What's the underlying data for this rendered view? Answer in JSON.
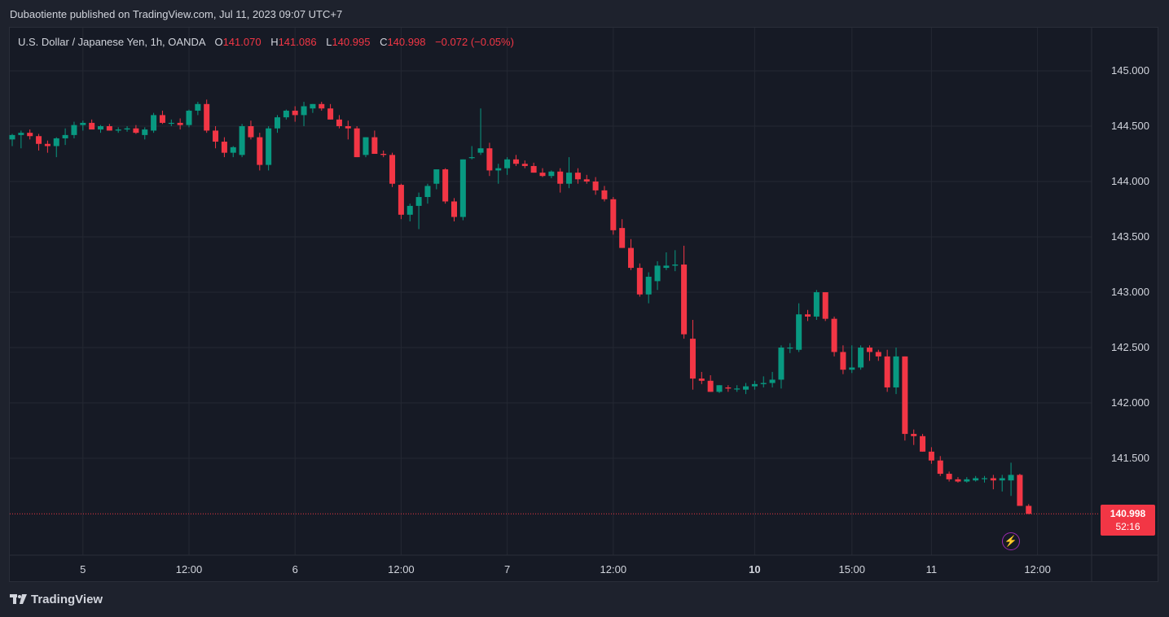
{
  "header": {
    "publish_text": "Dubaotiente published on TradingView.com, Jul 11, 2023 09:07 UTC+7"
  },
  "legend": {
    "symbol": "U.S. Dollar / Japanese Yen, 1h, OANDA",
    "o_label": "O",
    "o_value": "141.070",
    "h_label": "H",
    "h_value": "141.086",
    "l_label": "L",
    "l_value": "140.995",
    "c_label": "C",
    "c_value": "140.998",
    "change": "−0.072 (−0.05%)"
  },
  "price_tag": {
    "price": "140.998",
    "countdown": "52:16"
  },
  "footer": {
    "brand": "TradingView"
  },
  "colors": {
    "up": "#089981",
    "down": "#f23645",
    "grid": "#242833",
    "background": "#161a25",
    "text": "#d1d4dc"
  },
  "chart_data": {
    "type": "candlestick",
    "title": "U.S. Dollar / Japanese Yen, 1h, OANDA",
    "ylim": [
      140.6,
      145.4
    ],
    "y_ticks": [
      "145.000",
      "144.500",
      "144.000",
      "143.500",
      "143.000",
      "142.500",
      "142.000",
      "141.500"
    ],
    "x_tick_labels": [
      {
        "label": "5",
        "bar": 8,
        "bold": false
      },
      {
        "label": "12:00",
        "bar": 20,
        "bold": false
      },
      {
        "label": "6",
        "bar": 32,
        "bold": false
      },
      {
        "label": "12:00",
        "bar": 44,
        "bold": false
      },
      {
        "label": "7",
        "bar": 56,
        "bold": false
      },
      {
        "label": "12:00",
        "bar": 68,
        "bold": false
      },
      {
        "label": "10",
        "bar": 84,
        "bold": true
      },
      {
        "label": "15:00",
        "bar": 95,
        "bold": false
      },
      {
        "label": "11",
        "bar": 104,
        "bold": false
      },
      {
        "label": "12:00",
        "bar": 116,
        "bold": false
      }
    ],
    "last_price": 140.998,
    "candles": [
      [
        144.38,
        144.43,
        144.32,
        144.42
      ],
      [
        144.42,
        144.46,
        144.3,
        144.44
      ],
      [
        144.44,
        144.47,
        144.38,
        144.41
      ],
      [
        144.41,
        144.43,
        144.28,
        144.34
      ],
      [
        144.34,
        144.37,
        144.26,
        144.32
      ],
      [
        144.32,
        144.4,
        144.22,
        144.39
      ],
      [
        144.39,
        144.48,
        144.33,
        144.42
      ],
      [
        144.42,
        144.54,
        144.39,
        144.51
      ],
      [
        144.51,
        144.55,
        144.46,
        144.53
      ],
      [
        144.53,
        144.56,
        144.48,
        144.47
      ],
      [
        144.47,
        144.51,
        144.44,
        144.5
      ],
      [
        144.5,
        144.52,
        144.46,
        144.46
      ],
      [
        144.46,
        144.49,
        144.44,
        144.47
      ],
      [
        144.47,
        144.5,
        144.45,
        144.48
      ],
      [
        144.48,
        144.51,
        144.43,
        144.44
      ],
      [
        144.42,
        144.49,
        144.38,
        144.47
      ],
      [
        144.46,
        144.62,
        144.44,
        144.6
      ],
      [
        144.6,
        144.64,
        144.52,
        144.53
      ],
      [
        144.53,
        144.56,
        144.5,
        144.53
      ],
      [
        144.53,
        144.57,
        144.47,
        144.51
      ],
      [
        144.51,
        144.65,
        144.49,
        144.64
      ],
      [
        144.64,
        144.72,
        144.6,
        144.7
      ],
      [
        144.7,
        144.74,
        144.44,
        144.46
      ],
      [
        144.46,
        144.5,
        144.3,
        144.36
      ],
      [
        144.36,
        144.4,
        144.22,
        144.26
      ],
      [
        144.26,
        144.32,
        144.22,
        144.31
      ],
      [
        144.24,
        144.52,
        144.22,
        144.5
      ],
      [
        144.5,
        144.55,
        144.38,
        144.4
      ],
      [
        144.4,
        144.44,
        144.1,
        144.15
      ],
      [
        144.15,
        144.5,
        144.1,
        144.48
      ],
      [
        144.48,
        144.6,
        144.44,
        144.58
      ],
      [
        144.58,
        144.65,
        144.56,
        144.64
      ],
      [
        144.64,
        144.68,
        144.54,
        144.6
      ],
      [
        144.6,
        144.72,
        144.5,
        144.68
      ],
      [
        144.66,
        144.7,
        144.62,
        144.7
      ],
      [
        144.7,
        144.72,
        144.64,
        144.66
      ],
      [
        144.66,
        144.7,
        144.56,
        144.56
      ],
      [
        144.56,
        144.6,
        144.48,
        144.5
      ],
      [
        144.5,
        144.55,
        144.38,
        144.48
      ],
      [
        144.48,
        144.5,
        144.22,
        144.22
      ],
      [
        144.24,
        144.4,
        144.22,
        144.4
      ],
      [
        144.4,
        144.46,
        144.25,
        144.25
      ],
      [
        144.25,
        144.28,
        144.22,
        144.24
      ],
      [
        144.24,
        144.26,
        143.95,
        143.98
      ],
      [
        143.97,
        143.98,
        143.66,
        143.7
      ],
      [
        143.7,
        143.8,
        143.64,
        143.78
      ],
      [
        143.78,
        143.9,
        143.57,
        143.86
      ],
      [
        143.86,
        143.98,
        143.8,
        143.96
      ],
      [
        143.98,
        144.11,
        143.93,
        144.11
      ],
      [
        144.11,
        144.12,
        143.8,
        143.82
      ],
      [
        143.82,
        143.85,
        143.64,
        143.68
      ],
      [
        143.68,
        144.2,
        143.65,
        144.2
      ],
      [
        144.22,
        144.32,
        144.2,
        144.22
      ],
      [
        144.26,
        144.66,
        144.24,
        144.3
      ],
      [
        144.3,
        144.35,
        144.05,
        144.1
      ],
      [
        144.1,
        144.16,
        143.98,
        144.12
      ],
      [
        144.12,
        144.22,
        144.06,
        144.2
      ],
      [
        144.2,
        144.24,
        144.14,
        144.16
      ],
      [
        144.16,
        144.19,
        144.12,
        144.14
      ],
      [
        144.14,
        144.17,
        144.08,
        144.08
      ],
      [
        144.08,
        144.12,
        144.04,
        144.05
      ],
      [
        144.05,
        144.1,
        144.03,
        144.09
      ],
      [
        144.09,
        144.12,
        143.9,
        143.98
      ],
      [
        143.98,
        144.22,
        143.94,
        144.08
      ],
      [
        144.08,
        144.12,
        143.98,
        144.02
      ],
      [
        144.02,
        144.06,
        143.98,
        144.0
      ],
      [
        144.0,
        144.04,
        143.88,
        143.92
      ],
      [
        143.92,
        143.96,
        143.82,
        143.84
      ],
      [
        143.84,
        143.86,
        143.52,
        143.56
      ],
      [
        143.58,
        143.66,
        143.4,
        143.4
      ],
      [
        143.4,
        143.48,
        143.2,
        143.22
      ],
      [
        143.22,
        143.26,
        142.96,
        142.98
      ],
      [
        142.98,
        143.18,
        142.9,
        143.14
      ],
      [
        143.1,
        143.28,
        143.02,
        143.24
      ],
      [
        143.22,
        143.36,
        143.2,
        143.24
      ],
      [
        143.24,
        143.38,
        143.19,
        143.25
      ],
      [
        143.25,
        143.42,
        142.58,
        142.62
      ],
      [
        142.58,
        142.75,
        142.12,
        142.22
      ],
      [
        142.22,
        142.28,
        142.17,
        142.2
      ],
      [
        142.2,
        142.25,
        142.1,
        142.1
      ],
      [
        142.1,
        142.16,
        142.09,
        142.16
      ],
      [
        142.14,
        142.16,
        142.1,
        142.13
      ],
      [
        142.13,
        142.16,
        142.1,
        142.13
      ],
      [
        142.12,
        142.18,
        142.08,
        142.15
      ],
      [
        142.15,
        142.2,
        142.12,
        142.17
      ],
      [
        142.17,
        142.24,
        142.14,
        142.18
      ],
      [
        142.18,
        142.28,
        142.14,
        142.21
      ],
      [
        142.21,
        142.52,
        142.13,
        142.5
      ],
      [
        142.5,
        142.54,
        142.45,
        142.5
      ],
      [
        142.48,
        142.9,
        142.46,
        142.8
      ],
      [
        142.8,
        142.84,
        142.74,
        142.78
      ],
      [
        142.78,
        143.02,
        142.75,
        143.0
      ],
      [
        143.0,
        143.0,
        142.74,
        142.76
      ],
      [
        142.76,
        142.78,
        142.42,
        142.46
      ],
      [
        142.46,
        142.52,
        142.26,
        142.3
      ],
      [
        142.3,
        142.52,
        142.27,
        142.32
      ],
      [
        142.32,
        142.52,
        142.3,
        142.5
      ],
      [
        142.5,
        142.52,
        142.38,
        142.46
      ],
      [
        142.46,
        142.48,
        142.38,
        142.42
      ],
      [
        142.42,
        142.48,
        142.1,
        142.14
      ],
      [
        142.14,
        142.5,
        142.08,
        142.42
      ],
      [
        142.42,
        142.42,
        141.66,
        141.72
      ],
      [
        141.72,
        141.76,
        141.62,
        141.7
      ],
      [
        141.7,
        141.72,
        141.56,
        141.56
      ],
      [
        141.56,
        141.6,
        141.45,
        141.48
      ],
      [
        141.48,
        141.52,
        141.34,
        141.36
      ],
      [
        141.36,
        141.38,
        141.29,
        141.31
      ],
      [
        141.31,
        141.33,
        141.28,
        141.29
      ],
      [
        141.29,
        141.33,
        141.28,
        141.31
      ],
      [
        141.3,
        141.34,
        141.29,
        141.32
      ],
      [
        141.32,
        141.34,
        141.28,
        141.32
      ],
      [
        141.32,
        141.35,
        141.22,
        141.3
      ],
      [
        141.3,
        141.35,
        141.2,
        141.32
      ],
      [
        141.3,
        141.46,
        141.16,
        141.35
      ],
      [
        141.35,
        141.36,
        141.07,
        141.07
      ],
      [
        141.07,
        141.086,
        140.995,
        140.998
      ]
    ]
  }
}
